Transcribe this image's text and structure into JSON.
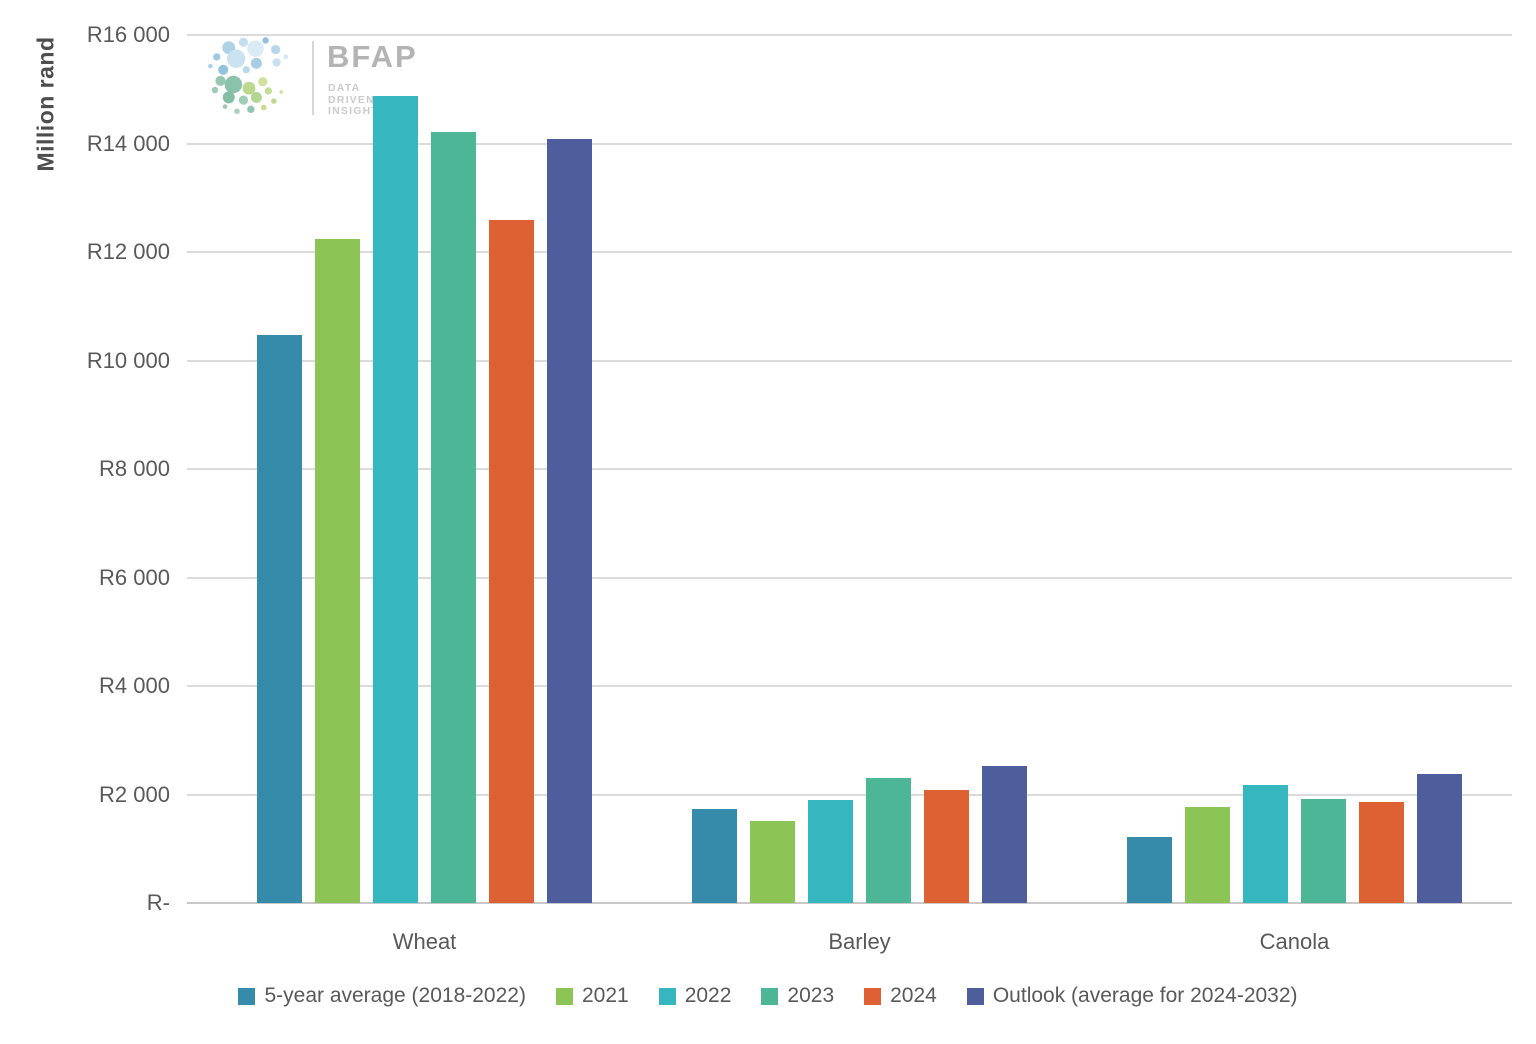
{
  "logo": {
    "brand": "BFAP",
    "tagline_lines": [
      "DATA",
      "DRIVEN",
      "INSIGHT"
    ]
  },
  "chart_data": {
    "type": "bar",
    "title": "",
    "xlabel": "",
    "ylabel": "Million rand",
    "unit": "Million rand",
    "categories": [
      "Wheat",
      "Barley",
      "Canola"
    ],
    "series": [
      {
        "name": "5-year average (2018-2022)",
        "color": "#358BA9",
        "values": [
          10470,
          1740,
          1210
        ]
      },
      {
        "name": "2021",
        "color": "#8CC455",
        "values": [
          12240,
          1520,
          1770
        ]
      },
      {
        "name": "2022",
        "color": "#36B7C0",
        "values": [
          14870,
          1890,
          2180
        ]
      },
      {
        "name": "2023",
        "color": "#4DB697",
        "values": [
          14220,
          2310,
          1920
        ]
      },
      {
        "name": "2024",
        "color": "#DE6133",
        "values": [
          12590,
          2090,
          1860
        ]
      },
      {
        "name": "Outlook (average for 2024-2032)",
        "color": "#4E5E9C",
        "values": [
          14080,
          2530,
          2370
        ]
      }
    ],
    "ylim": [
      0,
      16000
    ],
    "ytick_step": 2000,
    "ytick_labels": [
      "R16 000",
      "R14 000",
      "R12 000",
      "R10 000",
      "R8 000",
      "R6 000",
      "R4 000",
      "R2 000",
      "R-"
    ],
    "grid": true,
    "legend_position": "bottom"
  },
  "colors": {
    "grid": "#dbdbdb",
    "axis_line": "#c8c8c8",
    "tick_text": "#595959",
    "category_text": "#595959",
    "legend_text": "#595959",
    "y_title_text": "#4d4d4d"
  }
}
